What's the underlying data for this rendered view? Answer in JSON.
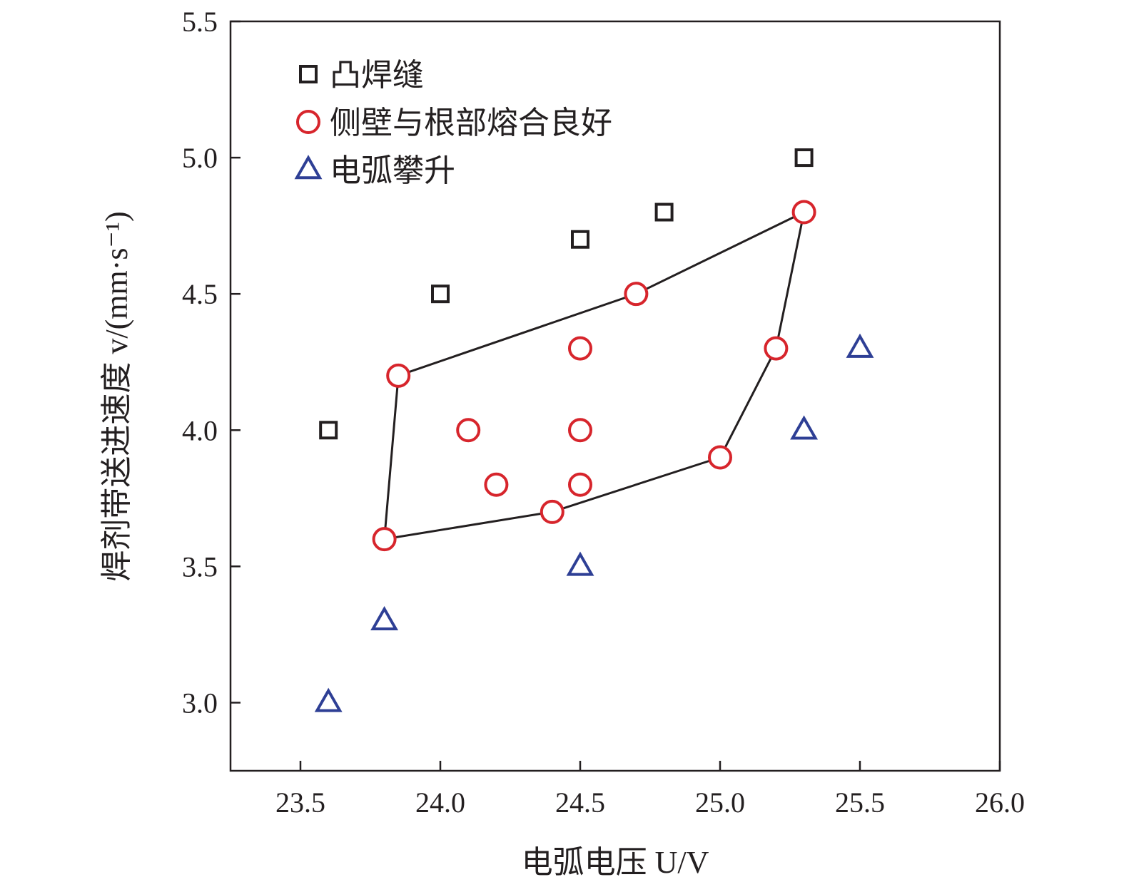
{
  "chart_data": {
    "type": "scatter",
    "title": "",
    "xlabel": "电弧电压 U/V",
    "ylabel": "焊剂带送进速度 v/(mm·s⁻¹)",
    "xlim": [
      23.25,
      26.0
    ],
    "ylim": [
      2.75,
      5.5
    ],
    "xticks": [
      "23.5",
      "24.0",
      "24.5",
      "25.0",
      "25.5",
      "26.0"
    ],
    "yticks": [
      "3.0",
      "3.5",
      "4.0",
      "4.5",
      "5.0",
      "5.5"
    ],
    "grid": false,
    "legend_position": "top-left",
    "series": [
      {
        "name": "凸焊缝",
        "marker": "square",
        "color": "#231f20",
        "points": [
          [
            23.6,
            4.0
          ],
          [
            24.0,
            4.5
          ],
          [
            24.5,
            4.7
          ],
          [
            24.8,
            4.8
          ],
          [
            25.3,
            5.0
          ]
        ]
      },
      {
        "name": "侧壁与根部熔合良好",
        "marker": "circle",
        "color": "#d7252c",
        "points": [
          [
            23.85,
            4.2
          ],
          [
            24.7,
            4.5
          ],
          [
            25.3,
            4.8
          ],
          [
            25.2,
            4.3
          ],
          [
            25.0,
            3.9
          ],
          [
            24.4,
            3.7
          ],
          [
            23.8,
            3.6
          ],
          [
            24.5,
            4.3
          ],
          [
            24.1,
            4.0
          ],
          [
            24.5,
            4.0
          ],
          [
            24.2,
            3.8
          ],
          [
            24.5,
            3.8
          ]
        ]
      },
      {
        "name": "电弧攀升",
        "marker": "triangle",
        "color": "#2e3f95",
        "points": [
          [
            23.6,
            3.0
          ],
          [
            23.8,
            3.3
          ],
          [
            24.5,
            3.5
          ],
          [
            25.3,
            4.0
          ],
          [
            25.5,
            4.3
          ]
        ]
      }
    ],
    "boundary": {
      "color": "#231f20",
      "points": [
        [
          23.85,
          4.2
        ],
        [
          24.7,
          4.5
        ],
        [
          25.3,
          4.8
        ],
        [
          25.2,
          4.3
        ],
        [
          25.0,
          3.9
        ],
        [
          24.4,
          3.7
        ],
        [
          23.8,
          3.6
        ]
      ]
    }
  }
}
